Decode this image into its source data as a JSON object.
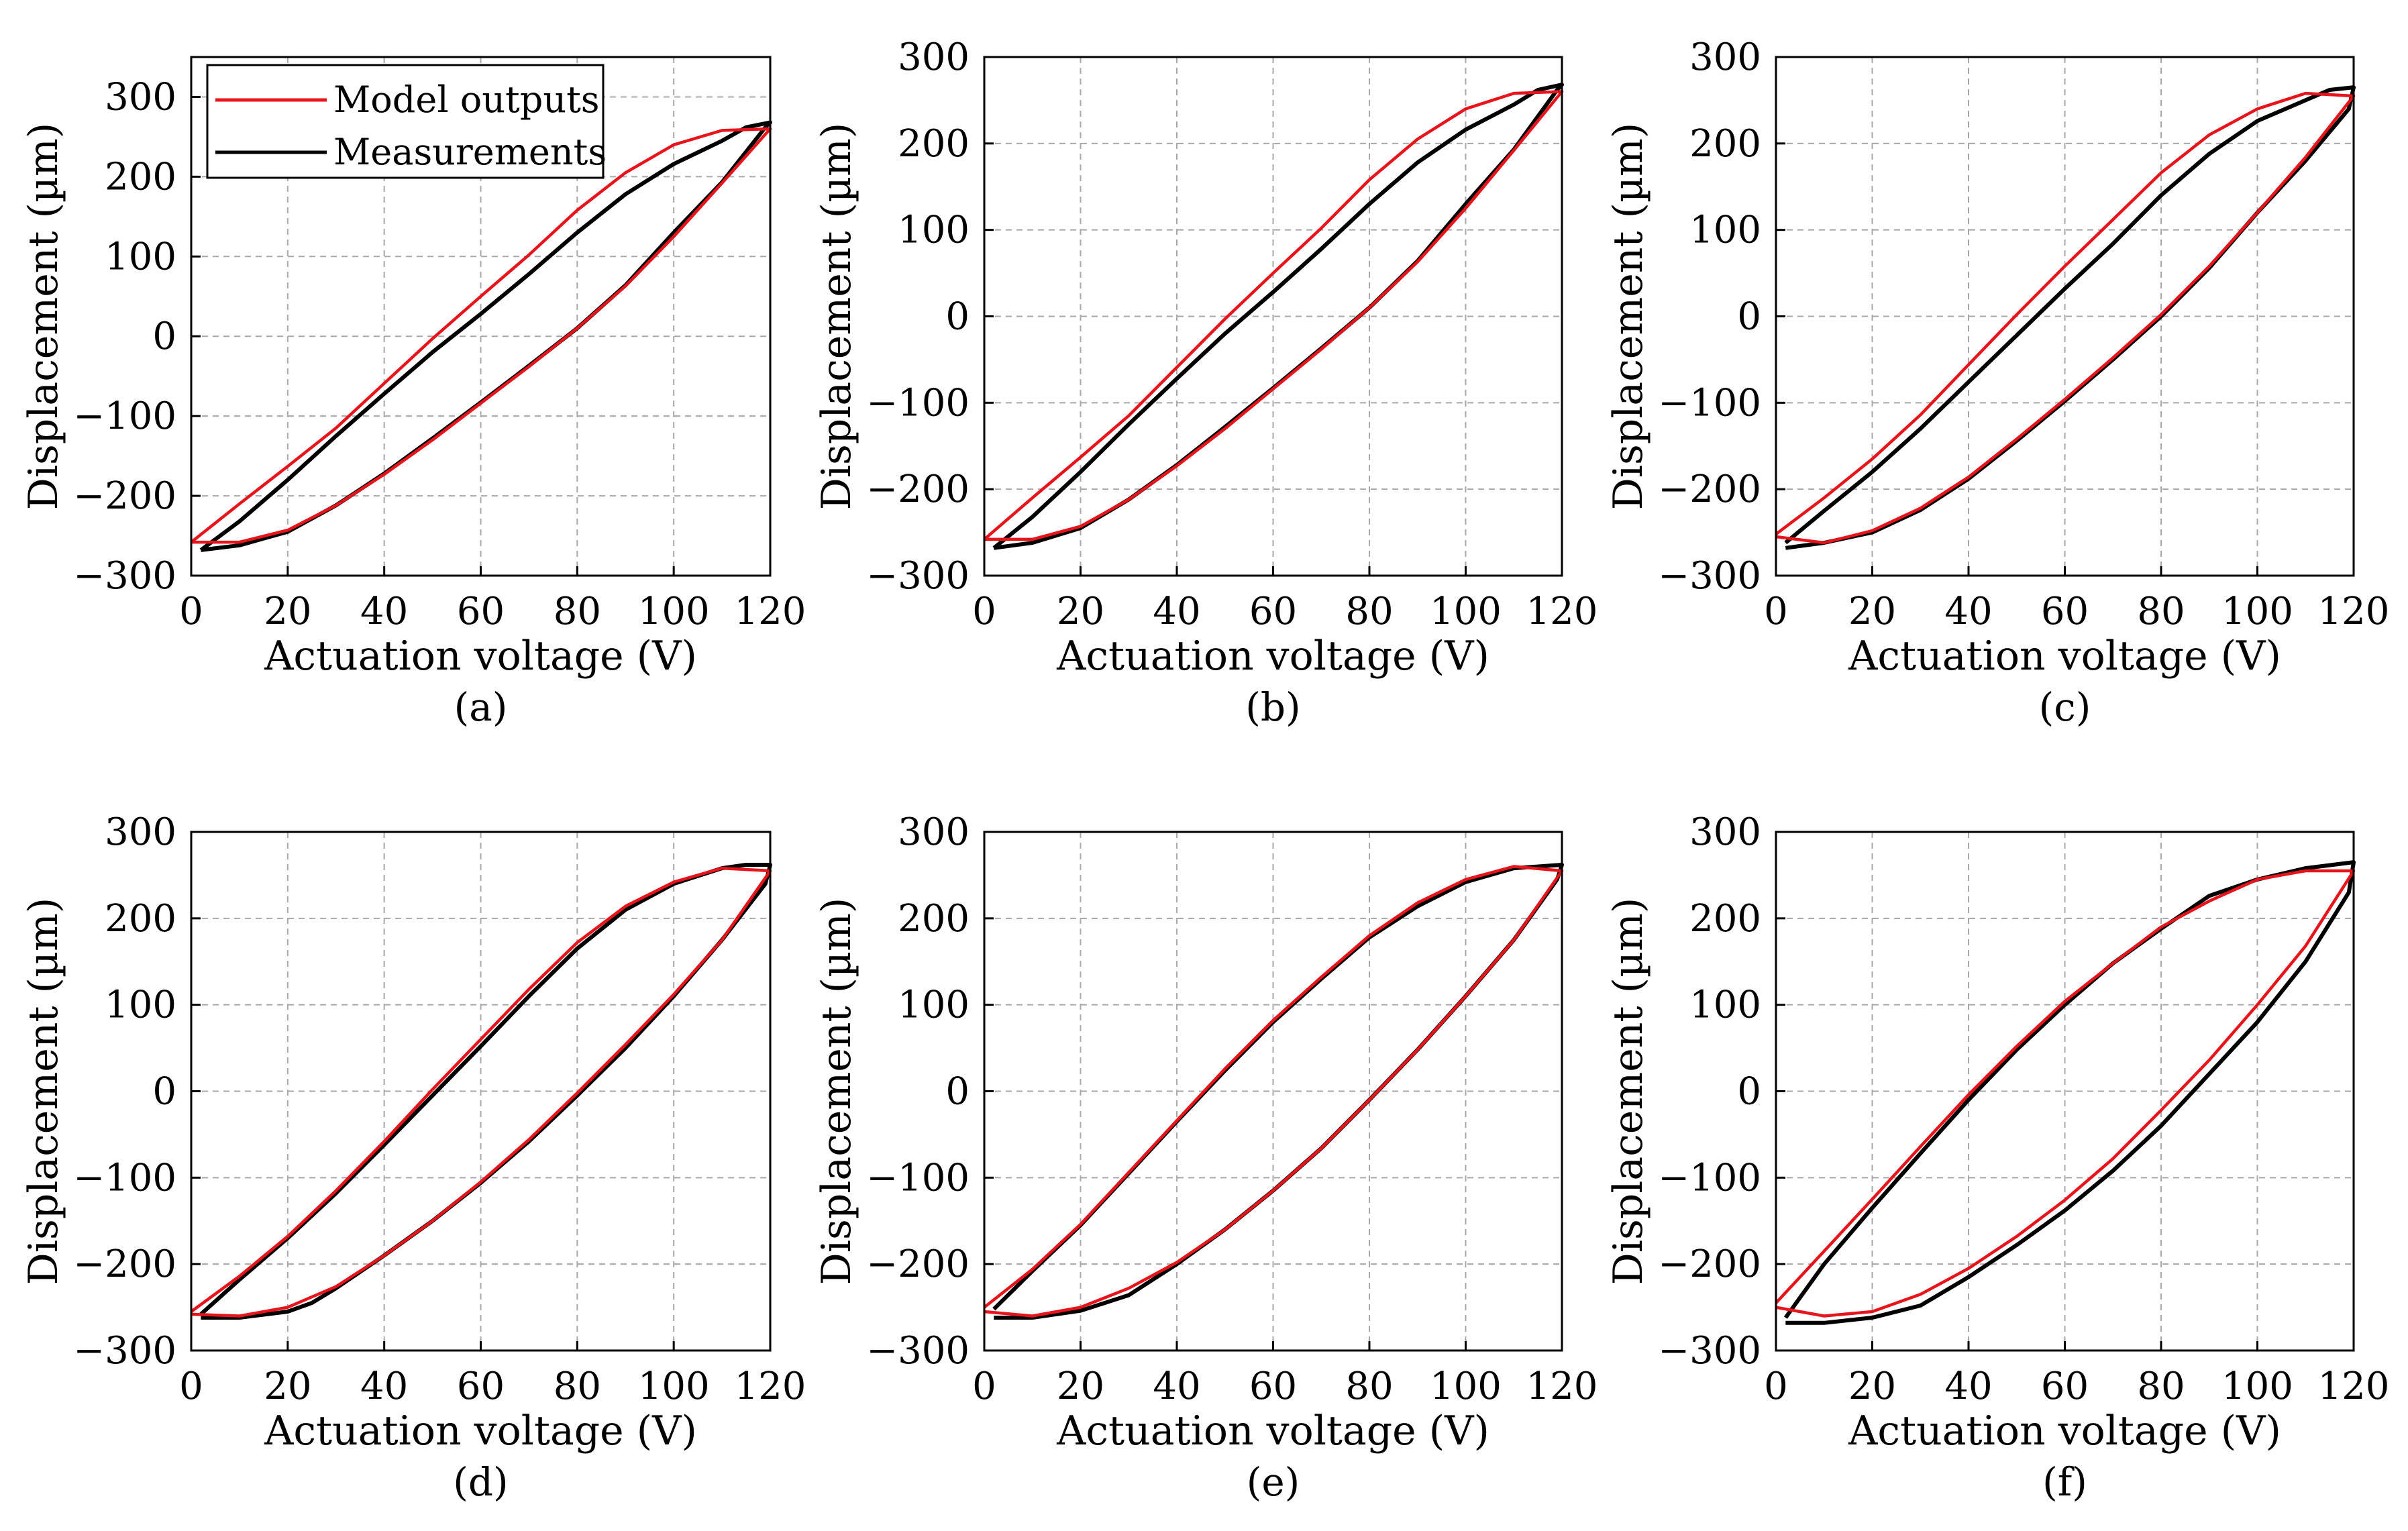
{
  "legend": {
    "model": "Model outputs",
    "meas": "Measurements"
  },
  "colors": {
    "model": "#e8141c",
    "meas": "#000000",
    "grid": "#a8a8a8"
  },
  "chart_data": [
    {
      "type": "line",
      "label": "(a)",
      "xlabel": "Actuation voltage (V)",
      "ylabel": "Displacement (µm)",
      "xlim": [
        0,
        120
      ],
      "ylim": [
        -300,
        350
      ],
      "xticks": [
        0,
        20,
        40,
        60,
        80,
        100,
        120
      ],
      "yticks": [
        -300,
        -200,
        -100,
        0,
        100,
        200,
        300
      ],
      "legend": true,
      "series": [
        {
          "name": "Measurements",
          "color": "#000000",
          "x": [
            2,
            10,
            20,
            30,
            40,
            50,
            60,
            70,
            80,
            90,
            100,
            110,
            119,
            120,
            115,
            110,
            100,
            90,
            80,
            70,
            60,
            50,
            40,
            30,
            20,
            10,
            2
          ],
          "y": [
            -268,
            -262,
            -245,
            -212,
            -172,
            -128,
            -83,
            -37,
            10,
            64,
            130,
            193,
            262,
            268,
            262,
            245,
            216,
            178,
            130,
            78,
            28,
            -20,
            -72,
            -125,
            -180,
            -232,
            -268
          ]
        },
        {
          "name": "Model outputs",
          "color": "#e8141c",
          "x": [
            0,
            10,
            20,
            30,
            40,
            50,
            60,
            70,
            80,
            90,
            100,
            110,
            120,
            110,
            100,
            90,
            80,
            70,
            60,
            50,
            40,
            30,
            20,
            10,
            0
          ],
          "y": [
            -258,
            -258,
            -243,
            -212,
            -173,
            -130,
            -84,
            -38,
            10,
            63,
            125,
            192,
            260,
            258,
            240,
            205,
            158,
            102,
            50,
            -3,
            -59,
            -115,
            -163,
            -210,
            -258
          ]
        }
      ]
    },
    {
      "type": "line",
      "label": "(b)",
      "xlabel": "Actuation voltage (V)",
      "ylabel": "Displacement (µm)",
      "xlim": [
        0,
        120
      ],
      "ylim": [
        -300,
        300
      ],
      "xticks": [
        0,
        20,
        40,
        60,
        80,
        100,
        120
      ],
      "yticks": [
        -300,
        -200,
        -100,
        0,
        100,
        200,
        300
      ],
      "legend": false,
      "series": [
        {
          "name": "Measurements",
          "color": "#000000",
          "x": [
            2,
            10,
            20,
            30,
            40,
            50,
            60,
            70,
            80,
            90,
            100,
            110,
            119,
            120,
            115,
            110,
            100,
            90,
            80,
            70,
            60,
            50,
            40,
            30,
            20,
            10,
            2
          ],
          "y": [
            -268,
            -262,
            -245,
            -212,
            -172,
            -128,
            -83,
            -37,
            10,
            64,
            130,
            193,
            262,
            268,
            262,
            245,
            216,
            178,
            130,
            78,
            28,
            -20,
            -72,
            -125,
            -180,
            -232,
            -268
          ]
        },
        {
          "name": "Model outputs",
          "color": "#e8141c",
          "x": [
            0,
            10,
            20,
            30,
            40,
            50,
            60,
            70,
            80,
            90,
            100,
            110,
            120,
            110,
            100,
            90,
            80,
            70,
            60,
            50,
            40,
            30,
            20,
            10,
            0
          ],
          "y": [
            -258,
            -258,
            -243,
            -212,
            -173,
            -130,
            -84,
            -38,
            10,
            63,
            125,
            192,
            260,
            258,
            240,
            205,
            158,
            102,
            50,
            -3,
            -59,
            -115,
            -163,
            -210,
            -258
          ]
        }
      ]
    },
    {
      "type": "line",
      "label": "(c)",
      "xlabel": "Actuation voltage (V)",
      "ylabel": "Displacement (µm)",
      "xlim": [
        0,
        120
      ],
      "ylim": [
        -300,
        300
      ],
      "xticks": [
        0,
        20,
        40,
        60,
        80,
        100,
        120
      ],
      "yticks": [
        -300,
        -200,
        -100,
        0,
        100,
        200,
        300
      ],
      "legend": false,
      "series": [
        {
          "name": "Measurements",
          "color": "#000000",
          "x": [
            2,
            10,
            20,
            30,
            40,
            50,
            60,
            70,
            80,
            90,
            100,
            110,
            119,
            120,
            115,
            110,
            100,
            90,
            80,
            70,
            60,
            50,
            40,
            30,
            20,
            10,
            2
          ],
          "y": [
            -268,
            -262,
            -250,
            -224,
            -188,
            -144,
            -98,
            -50,
            0,
            56,
            120,
            180,
            240,
            265,
            262,
            250,
            226,
            188,
            140,
            84,
            32,
            -22,
            -76,
            -130,
            -180,
            -225,
            -262
          ]
        },
        {
          "name": "Model outputs",
          "color": "#e8141c",
          "x": [
            0,
            10,
            20,
            30,
            40,
            50,
            60,
            70,
            80,
            90,
            100,
            110,
            120,
            110,
            100,
            90,
            80,
            70,
            60,
            50,
            40,
            30,
            20,
            10,
            0
          ],
          "y": [
            -255,
            -262,
            -248,
            -222,
            -186,
            -142,
            -96,
            -48,
            2,
            58,
            120,
            184,
            255,
            258,
            240,
            210,
            166,
            112,
            58,
            2,
            -56,
            -114,
            -165,
            -210,
            -252
          ]
        }
      ]
    },
    {
      "type": "line",
      "label": "(d)",
      "xlabel": "Actuation voltage (V)",
      "ylabel": "Displacement (µm)",
      "xlim": [
        0,
        120
      ],
      "ylim": [
        -300,
        300
      ],
      "xticks": [
        0,
        20,
        40,
        60,
        80,
        100,
        120
      ],
      "yticks": [
        -300,
        -200,
        -100,
        0,
        100,
        200,
        300
      ],
      "legend": false,
      "series": [
        {
          "name": "Measurements",
          "color": "#000000",
          "x": [
            2,
            10,
            20,
            25,
            30,
            40,
            50,
            60,
            70,
            80,
            90,
            100,
            110,
            119,
            120,
            115,
            110,
            100,
            90,
            80,
            70,
            60,
            50,
            40,
            30,
            20,
            10,
            2
          ],
          "y": [
            -262,
            -262,
            -255,
            -245,
            -228,
            -190,
            -150,
            -106,
            -58,
            -5,
            50,
            110,
            175,
            240,
            262,
            262,
            258,
            240,
            210,
            165,
            110,
            52,
            -5,
            -62,
            -118,
            -170,
            -218,
            -258
          ]
        },
        {
          "name": "Model outputs",
          "color": "#e8141c",
          "x": [
            0,
            10,
            20,
            30,
            40,
            50,
            60,
            70,
            80,
            90,
            100,
            110,
            120,
            110,
            100,
            90,
            80,
            70,
            60,
            50,
            40,
            30,
            20,
            10,
            0
          ],
          "y": [
            -258,
            -260,
            -250,
            -226,
            -190,
            -150,
            -105,
            -56,
            -2,
            54,
            112,
            175,
            255,
            258,
            242,
            214,
            172,
            118,
            60,
            2,
            -58,
            -115,
            -168,
            -214,
            -255
          ]
        }
      ]
    },
    {
      "type": "line",
      "label": "(e)",
      "xlabel": "Actuation voltage (V)",
      "ylabel": "Displacement (µm)",
      "xlim": [
        0,
        120
      ],
      "ylim": [
        -300,
        300
      ],
      "xticks": [
        0,
        20,
        40,
        60,
        80,
        100,
        120
      ],
      "yticks": [
        -300,
        -200,
        -100,
        0,
        100,
        200,
        300
      ],
      "legend": false,
      "series": [
        {
          "name": "Measurements",
          "color": "#000000",
          "x": [
            2,
            10,
            20,
            30,
            40,
            50,
            60,
            70,
            80,
            90,
            100,
            110,
            119,
            120,
            110,
            100,
            90,
            80,
            70,
            60,
            50,
            40,
            30,
            20,
            10,
            2
          ],
          "y": [
            -262,
            -262,
            -254,
            -236,
            -200,
            -160,
            -115,
            -66,
            -10,
            48,
            110,
            175,
            245,
            262,
            258,
            242,
            214,
            178,
            130,
            80,
            24,
            -35,
            -95,
            -155,
            -208,
            -252
          ]
        },
        {
          "name": "Model outputs",
          "color": "#e8141c",
          "x": [
            0,
            10,
            20,
            30,
            40,
            50,
            60,
            70,
            80,
            90,
            100,
            110,
            120,
            110,
            100,
            90,
            80,
            70,
            60,
            50,
            40,
            30,
            20,
            10,
            0
          ],
          "y": [
            -255,
            -260,
            -250,
            -228,
            -198,
            -160,
            -115,
            -66,
            -10,
            48,
            110,
            175,
            255,
            260,
            245,
            218,
            180,
            132,
            82,
            26,
            -34,
            -94,
            -154,
            -206,
            -250
          ]
        }
      ]
    },
    {
      "type": "line",
      "label": "(f)",
      "xlabel": "Actuation voltage (V)",
      "ylabel": "Displacement (µm)",
      "xlim": [
        0,
        120
      ],
      "ylim": [
        -300,
        300
      ],
      "xticks": [
        0,
        20,
        40,
        60,
        80,
        100,
        120
      ],
      "yticks": [
        -300,
        -200,
        -100,
        0,
        100,
        200,
        300
      ],
      "legend": false,
      "series": [
        {
          "name": "Measurements",
          "color": "#000000",
          "x": [
            2,
            10,
            20,
            30,
            40,
            50,
            60,
            70,
            80,
            90,
            100,
            110,
            119,
            120,
            110,
            100,
            90,
            80,
            70,
            60,
            50,
            40,
            30,
            20,
            10,
            2
          ],
          "y": [
            -268,
            -268,
            -262,
            -248,
            -215,
            -178,
            -138,
            -92,
            -40,
            20,
            80,
            150,
            230,
            265,
            258,
            245,
            226,
            188,
            148,
            100,
            48,
            -10,
            -72,
            -135,
            -200,
            -262
          ]
        },
        {
          "name": "Model outputs",
          "color": "#e8141c",
          "x": [
            0,
            10,
            20,
            30,
            40,
            50,
            60,
            70,
            80,
            90,
            100,
            110,
            120,
            110,
            100,
            90,
            80,
            70,
            60,
            50,
            40,
            30,
            20,
            10,
            0
          ],
          "y": [
            -250,
            -260,
            -255,
            -235,
            -205,
            -168,
            -126,
            -78,
            -22,
            36,
            100,
            168,
            255,
            255,
            245,
            220,
            190,
            148,
            104,
            52,
            -4,
            -64,
            -125,
            -185,
            -245
          ]
        }
      ]
    }
  ]
}
